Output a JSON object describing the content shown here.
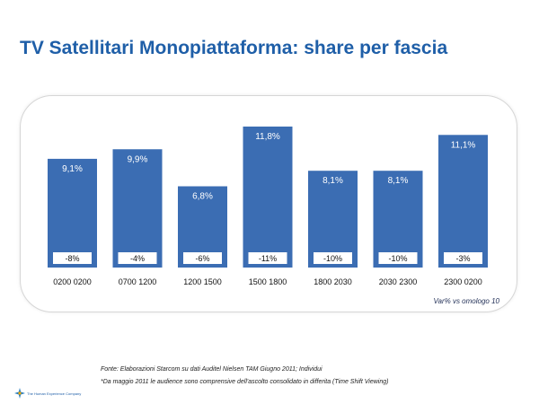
{
  "title": "TV Satellitari Monopiattaforma: share per fascia",
  "chart_data": {
    "type": "bar",
    "categories": [
      "0200 0200",
      "0700 1200",
      "1200 1500",
      "1500 1800",
      "1800 2030",
      "2030 2300",
      "2300 0200"
    ],
    "values": [
      9.1,
      9.9,
      6.8,
      11.8,
      8.1,
      8.1,
      11.1
    ],
    "value_labels": [
      "9,1%",
      "9,9%",
      "6,8%",
      "11,8%",
      "8,1%",
      "8,1%",
      "11,1%"
    ],
    "variation_labels": [
      "-8%",
      "-4%",
      "-6%",
      "-11%",
      "-10%",
      "-10%",
      "-3%"
    ],
    "ylim": [
      0,
      13
    ],
    "bar_color": "#3b6db3",
    "grid": false,
    "legend": "none"
  },
  "note": "Var% vs omologo 10",
  "sources": [
    "Fonte: Elaborazioni Starcom su dati Auditel Nielsen TAM Giugno 2011; Individui",
    "*Da maggio 2011 le audience sono comprensive dell'ascolto consolidato in differita (Time Shift Viewing)"
  ],
  "footer": {
    "company": "The Human Experience Company",
    "logo_icon": "star-logo-icon"
  }
}
